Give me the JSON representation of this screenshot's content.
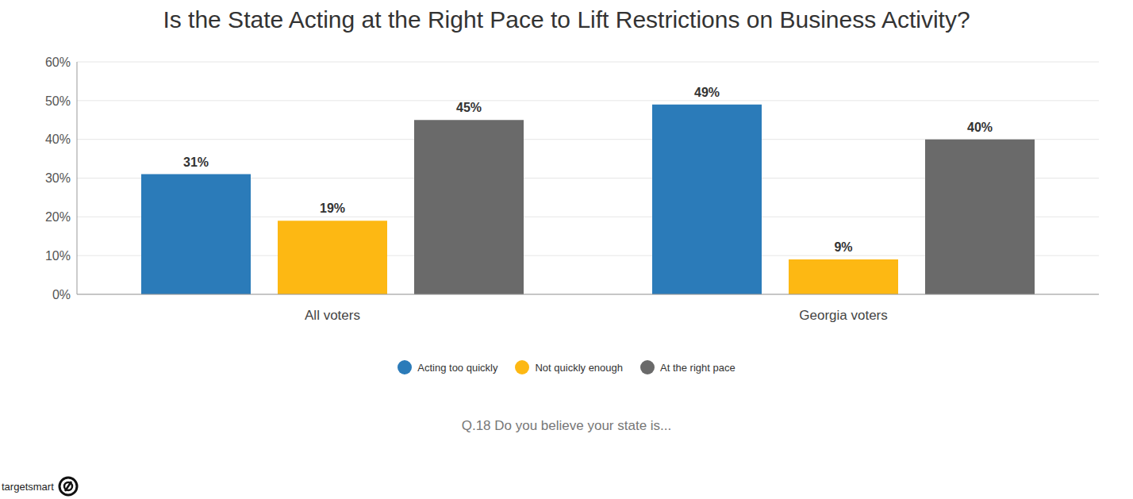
{
  "chart_data": {
    "type": "bar",
    "title": "Is the State Acting at the Right Pace to Lift Restrictions on Business Activity?",
    "categories": [
      "All voters",
      "Georgia voters"
    ],
    "series": [
      {
        "name": "Acting too quickly",
        "color": "#2b7bb9",
        "values": [
          31,
          49
        ],
        "value_labels": [
          "31%",
          "49%"
        ]
      },
      {
        "name": "Not quickly enough",
        "color": "#fdb813",
        "values": [
          19,
          9
        ],
        "value_labels": [
          "19%",
          "9%"
        ]
      },
      {
        "name": "At the right pace",
        "color": "#6a6a6a",
        "values": [
          45,
          40
        ],
        "value_labels": [
          "45%",
          "40%"
        ]
      }
    ],
    "ylim": [
      0,
      60
    ],
    "yticks": [
      {
        "value": 0,
        "label": "0%"
      },
      {
        "value": 10,
        "label": "10%"
      },
      {
        "value": 20,
        "label": "20%"
      },
      {
        "value": 30,
        "label": "30%"
      },
      {
        "value": 40,
        "label": "40%"
      },
      {
        "value": 50,
        "label": "50%"
      },
      {
        "value": 60,
        "label": "60%"
      }
    ],
    "grid": true,
    "legend": "bottom",
    "data_labels": true,
    "annotations": [
      "Q.18 Do you believe your state is...",
      "targetsmart"
    ]
  }
}
